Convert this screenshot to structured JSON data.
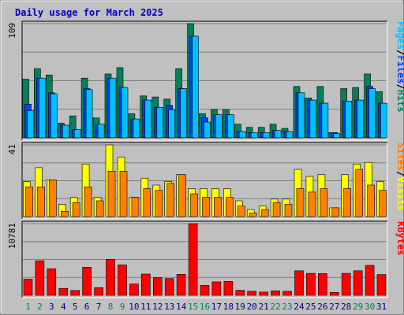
{
  "title": "Daily usage for March 2025",
  "colors": {
    "frame_bg": "#c0c0c0",
    "plot_bg": "#c0c0c0",
    "title": "#0000c0",
    "hits": "#00805c",
    "files": "#0040ff",
    "pages": "#00c0ff",
    "visits": "#ffff00",
    "sites": "#ff8000",
    "kbytes": "#ff0000",
    "weekday": "#000080",
    "weekend": "#00805c"
  },
  "chart_data": {
    "type": "bar",
    "categories": [
      "1",
      "2",
      "3",
      "4",
      "5",
      "6",
      "7",
      "8",
      "9",
      "10",
      "11",
      "12",
      "13",
      "14",
      "15",
      "16",
      "17",
      "18",
      "19",
      "20",
      "21",
      "22",
      "23",
      "24",
      "25",
      "26",
      "27",
      "28",
      "29",
      "30",
      "31"
    ],
    "weekend_days": [
      "1",
      "2",
      "8",
      "9",
      "15",
      "16",
      "22",
      "23",
      "29",
      "30"
    ],
    "panels": [
      {
        "name": "hits-files-pages",
        "ymax_label": "109",
        "ylim": [
          0,
          109
        ],
        "legend": [
          {
            "text": "Pages",
            "color_key": "pages"
          },
          {
            "text": "Files",
            "color_key": "files"
          },
          {
            "text": "Hits",
            "color_key": "hits"
          }
        ],
        "series": [
          {
            "name": "Hits",
            "color_key": "hits",
            "values": [
              56,
              66,
              60,
              14,
              21,
              57,
              19,
              61,
              67,
              23,
              40,
              39,
              37,
              66,
              109,
              23,
              27,
              27,
              13,
              10,
              10,
              13,
              9,
              49,
              38,
              49,
              5,
              47,
              48,
              61,
              44
            ]
          },
          {
            "name": "Files",
            "color_key": "files",
            "values": [
              32,
              57,
              43,
              12,
              8,
              47,
              12,
              57,
              48,
              18,
              36,
              29,
              31,
              47,
              97,
              19,
              22,
              22,
              6,
              5,
              5,
              7,
              6,
              43,
              36,
              33,
              5,
              35,
              36,
              49,
              33
            ]
          },
          {
            "name": "Pages",
            "color_key": "pages",
            "values": [
              26,
              57,
              42,
              12,
              8,
              46,
              13,
              57,
              48,
              18,
              36,
              29,
              27,
              47,
              97,
              15,
              22,
              22,
              6,
              5,
              5,
              7,
              6,
              43,
              36,
              33,
              4,
              35,
              36,
              47,
              33
            ]
          }
        ]
      },
      {
        "name": "visits-sites",
        "ymax_label": "41",
        "ylim": [
          0,
          41
        ],
        "legend": [
          {
            "text": "Sites",
            "color_key": "sites"
          },
          {
            "text": "Visits",
            "color_key": "visits"
          }
        ],
        "series": [
          {
            "name": "Visits",
            "color_key": "visits",
            "values": [
              20,
              28,
              21,
              7,
              11,
              30,
              11,
              41,
              34,
              11,
              22,
              18,
              20,
              24,
              16,
              16,
              16,
              16,
              9,
              4,
              6,
              10,
              10,
              27,
              23,
              24,
              5,
              24,
              30,
              31,
              20
            ]
          },
          {
            "name": "Sites",
            "color_key": "sites",
            "values": [
              17,
              17,
              21,
              3,
              8,
              17,
              9,
              26,
              26,
              11,
              16,
              15,
              19,
              24,
              13,
              11,
              11,
              11,
              6,
              2,
              4,
              8,
              7,
              16,
              14,
              16,
              5,
              16,
              27,
              18,
              15
            ]
          }
        ]
      },
      {
        "name": "kbytes",
        "ymax_label": "10781",
        "ylim": [
          0,
          10781
        ],
        "legend": [
          {
            "text": "KBytes",
            "color_key": "kbytes"
          }
        ],
        "series": [
          {
            "name": "KBytes",
            "color_key": "kbytes",
            "values": [
              2430,
              5200,
              4010,
              1040,
              730,
              4230,
              1160,
              5410,
              4590,
              1710,
              3200,
              2670,
              2520,
              3160,
              10781,
              1490,
              2020,
              2090,
              750,
              600,
              480,
              680,
              600,
              3700,
              3300,
              3270,
              440,
              3300,
              3700,
              4500,
              3130
            ]
          }
        ]
      }
    ]
  }
}
